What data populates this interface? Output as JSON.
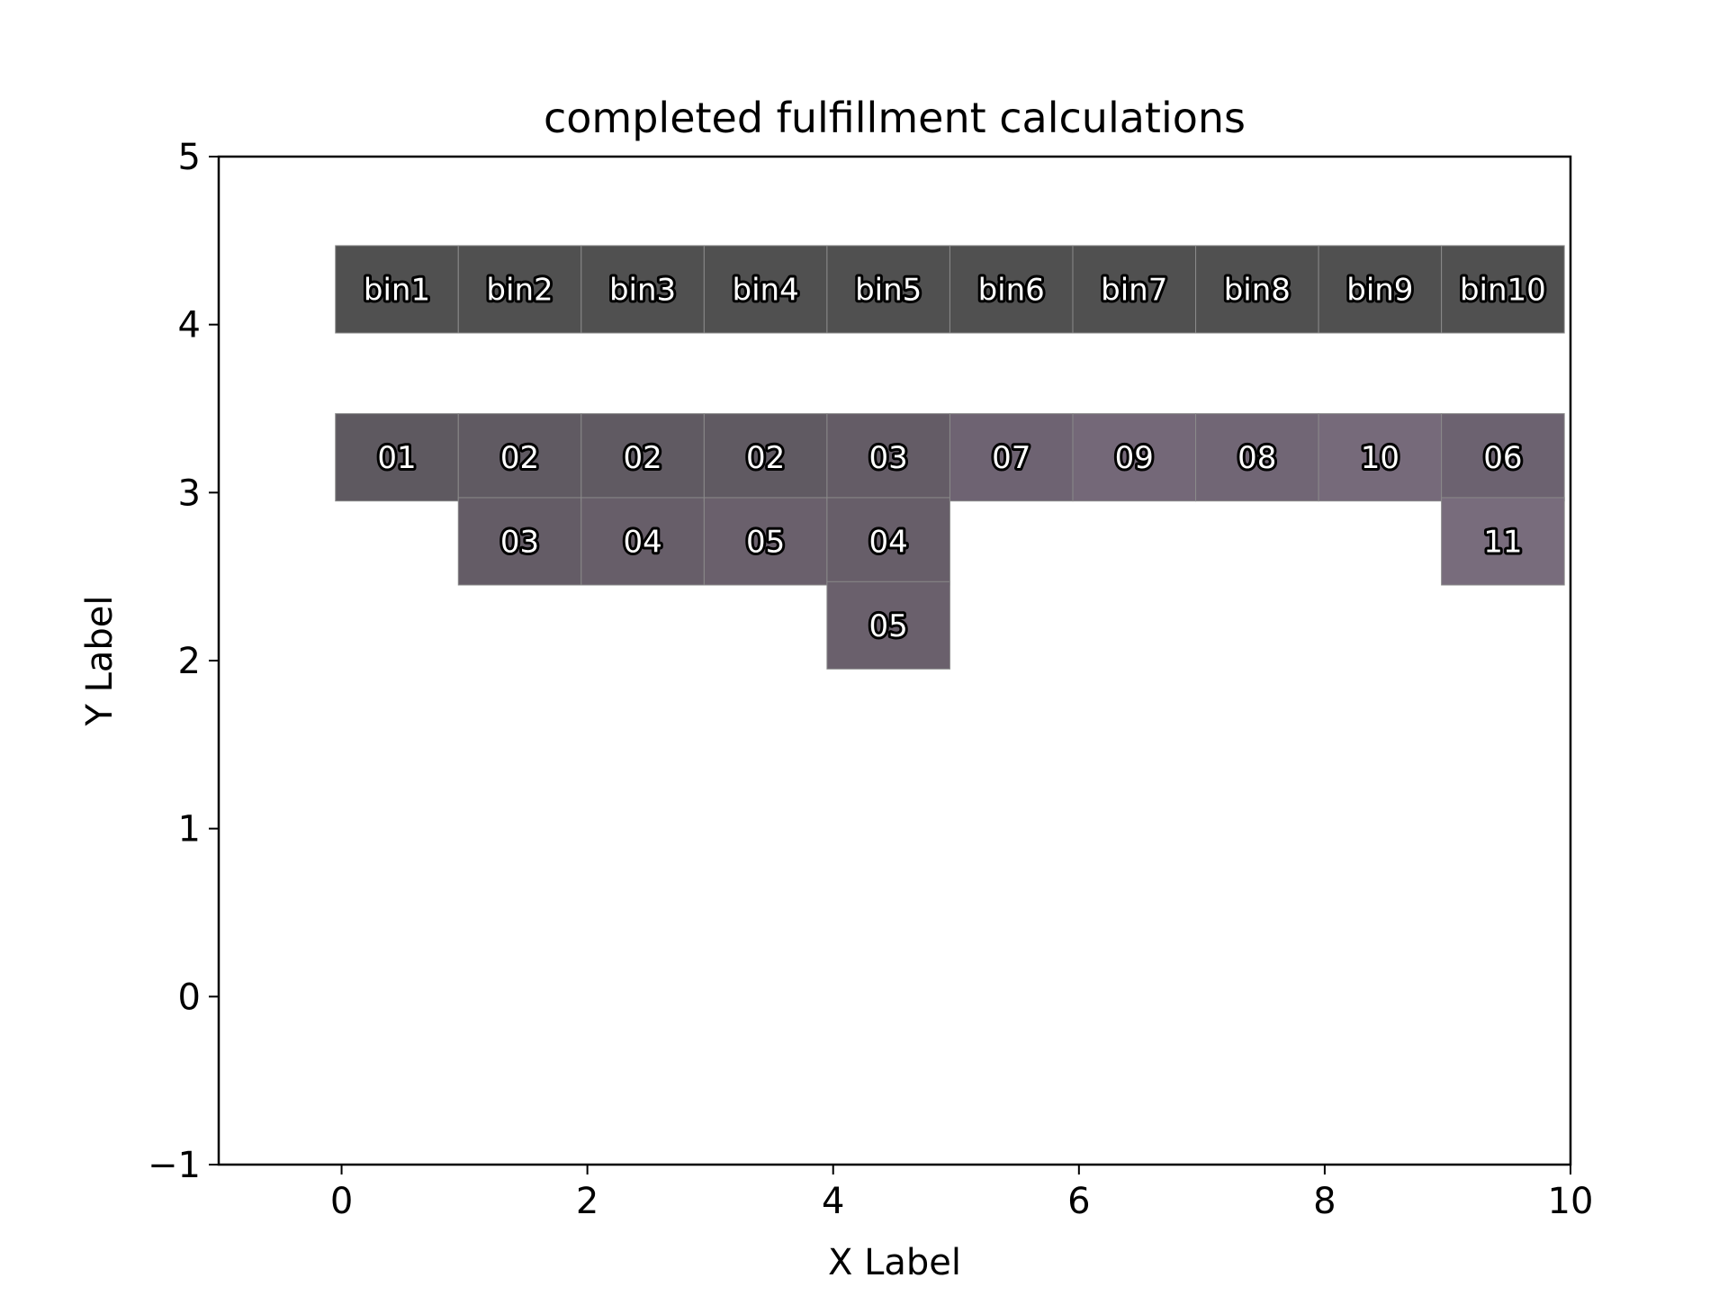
{
  "chart_data": {
    "type": "heatmap",
    "title": "completed fulfillment calculations",
    "xlabel": "X Label",
    "ylabel": "Y Label",
    "xlim": [
      -1,
      10
    ],
    "ylim": [
      -1,
      5
    ],
    "x_ticks": [
      0,
      2,
      4,
      6,
      8,
      10
    ],
    "x_tick_labels": [
      "0",
      "2",
      "4",
      "6",
      "8",
      "10"
    ],
    "y_ticks": [
      -1,
      0,
      1,
      2,
      3,
      4,
      5
    ],
    "y_tick_labels": [
      "−1",
      "0",
      "1",
      "2",
      "3",
      "4",
      "5"
    ],
    "grid": false,
    "header_color": "#505050",
    "bins": [
      {
        "label": "bin1",
        "x": 0,
        "values": [
          "01"
        ],
        "colors": [
          "#5e5960"
        ]
      },
      {
        "label": "bin2",
        "x": 1,
        "values": [
          "02",
          "03"
        ],
        "colors": [
          "#605a62",
          "#645c66"
        ]
      },
      {
        "label": "bin3",
        "x": 2,
        "values": [
          "02",
          "04"
        ],
        "colors": [
          "#605a62",
          "#675e69"
        ]
      },
      {
        "label": "bin4",
        "x": 3,
        "values": [
          "02",
          "05"
        ],
        "colors": [
          "#605a62",
          "#6a606c"
        ]
      },
      {
        "label": "bin5",
        "x": 4,
        "values": [
          "03",
          "04",
          "05"
        ],
        "colors": [
          "#645c66",
          "#675e69",
          "#6a606c"
        ]
      },
      {
        "label": "bin6",
        "x": 5,
        "values": [
          "07"
        ],
        "colors": [
          "#6e6372"
        ]
      },
      {
        "label": "bin7",
        "x": 6,
        "values": [
          "09"
        ],
        "colors": [
          "#746878"
        ]
      },
      {
        "label": "bin8",
        "x": 7,
        "values": [
          "08"
        ],
        "colors": [
          "#716675"
        ]
      },
      {
        "label": "bin9",
        "x": 8,
        "values": [
          "10"
        ],
        "colors": [
          "#766a7a"
        ]
      },
      {
        "label": "bin10",
        "x": 9,
        "values": [
          "06",
          "11"
        ],
        "colors": [
          "#6c6270",
          "#786c7c"
        ]
      }
    ]
  }
}
